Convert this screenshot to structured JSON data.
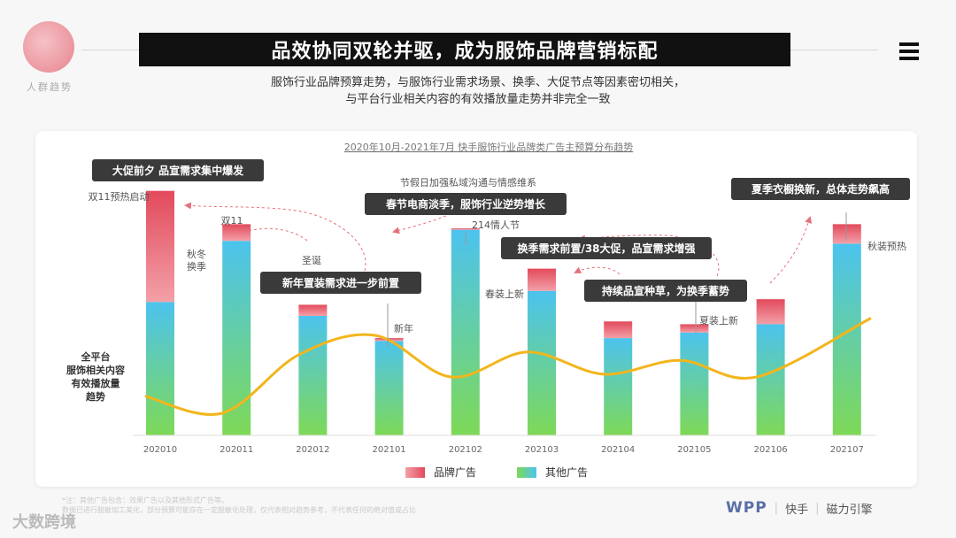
{
  "header": {
    "logo_caption": "人群趋势",
    "title": "品效协同双轮并驱，成为服饰品牌营销标配",
    "subtitle_line1": "服饰行业品牌预算走势，与服饰行业需求场景、换季、大促节点等因素密切相关，",
    "subtitle_line2": "与平台行业相关内容的有效播放量走势并非完全一致"
  },
  "chart_data": {
    "type": "bar",
    "stacked": true,
    "title": "2020年10月-2021年7月 快手服饰行业品牌类广告主预算分布趋势",
    "categories": [
      "202010",
      "202011",
      "202012",
      "202101",
      "202102",
      "202103",
      "202104",
      "202105",
      "202106",
      "202107"
    ],
    "series": [
      {
        "name": "其他广告",
        "values": [
          48,
          70,
          43,
          34,
          74,
          52,
          35,
          37,
          40,
          69
        ]
      },
      {
        "name": "品牌广告",
        "values": [
          40,
          6,
          4,
          1,
          0.5,
          8,
          6,
          3,
          9,
          7
        ]
      }
    ],
    "ylim": [
      0,
      100
    ],
    "line": {
      "name": "全平台服饰相关内容有效播放量趋势",
      "values": [
        14,
        8,
        29,
        36,
        21,
        30,
        22,
        27,
        21,
        42
      ]
    },
    "colors": {
      "brand_top": "#e24a5c",
      "brand_bottom": "#f3a0a8",
      "other_top": "#4cc3ee",
      "other_bottom": "#7ed957",
      "line": "#f2b51d"
    },
    "legend": [
      {
        "name": "品牌广告",
        "color": "#ec6d7a"
      },
      {
        "name": "其他广告",
        "color": "#53c9b0"
      }
    ],
    "line_label": [
      "全平台",
      "服饰相关内容",
      "有效播放量",
      "趋势"
    ],
    "callouts": [
      "大促前夕 品宣需求集中爆发",
      "春节电商淡季，服饰行业逆势增长",
      "新年置装需求进一步前置",
      "换季需求前置/38大促，品宣需求增强",
      "持续品宣种草，为换季蓄势",
      "夏季衣橱换新，总体走势飙高"
    ],
    "annotations": [
      "双11预热启动",
      "双11",
      "秋冬",
      "换季",
      "圣诞",
      "新年",
      "节假日加强私域沟通与情感维系",
      "214情人节",
      "春装上新",
      "夏装上新",
      "秋装预热"
    ]
  },
  "footer": {
    "note_line1": "*注：其他广告包含：效果广告以及其他形式广告等。",
    "note_line2": "数据已进行脱敏加工美化，部分预算可能存在一定脱敏化处理，仅代表相对趋势参考，不代表任何的绝对值或占比",
    "watermark": "大数跨境",
    "brand_wpp": "WPP",
    "brand_kuaishou": "快手",
    "brand_cili": "磁力引擎"
  }
}
